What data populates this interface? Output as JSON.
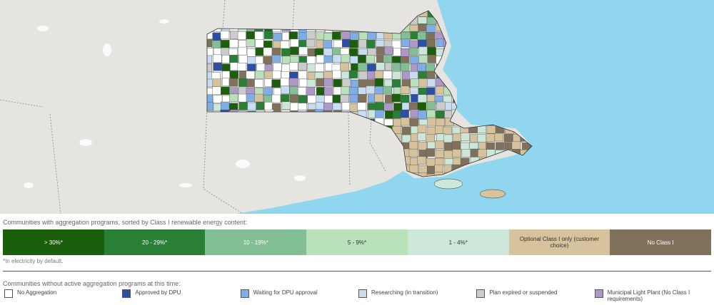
{
  "map": {
    "legend_programs": {
      "title": "Communities with aggregation programs, sorted by Class I renewable energy content:",
      "items": [
        {
          "label": "> 30%*",
          "color": "#1b5e0c"
        },
        {
          "label": "20 - 29%*",
          "color": "#2a7f36"
        },
        {
          "label": "10 - 19%*",
          "color": "#82bf95"
        },
        {
          "label": "5 - 9%*",
          "color": "#b8e0b9"
        },
        {
          "label": "1 - 4%*",
          "color": "#cde6da"
        },
        {
          "label": "Optional Class I only (customer choice)",
          "color": "#d6c29c"
        },
        {
          "label": "No Class I",
          "color": "#7f715a"
        }
      ],
      "note": "*In electricity by default."
    },
    "legend_other": {
      "title": "Communities without active aggregation programs at this time:",
      "items": [
        {
          "label": "No Aggregation",
          "color": "#ffffff"
        },
        {
          "label": "Approved by DPU",
          "color": "#2c4ea3"
        },
        {
          "label": "Waiting for DPU approval",
          "color": "#7eaee5"
        },
        {
          "label": "Researching (in transition)",
          "color": "#c8dcf2"
        },
        {
          "label": "Plan expired or suspended",
          "color": "#cccccc"
        },
        {
          "label": "Municipal Light Plant (No Class I requirements)",
          "color": "#ad98c8"
        }
      ]
    }
  }
}
